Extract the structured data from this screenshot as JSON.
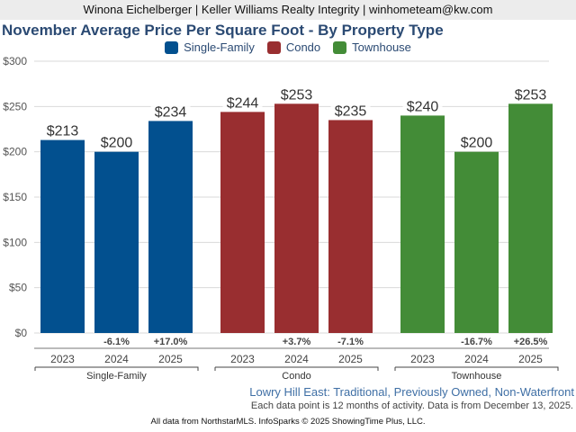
{
  "header": {
    "text": "Winona Eichelberger | Keller Williams Realty Integrity | winhometeam@kw.com"
  },
  "subtitle": "Lowry Hill East: Traditional, Previously Owned, Non-Waterfront",
  "note": "Each data point is 12 months of activity. Data is from December 13, 2025.",
  "footer": "All data from NorthstarMLS. InfoSparks © 2025 ShowingTime Plus, LLC.",
  "chart_data": {
    "type": "bar",
    "title": "November Average Price Per Square Foot - By Property Type",
    "xlabel": "",
    "ylabel": "",
    "ylim": [
      0,
      300
    ],
    "yticks": [
      0,
      50,
      100,
      150,
      200,
      250,
      300
    ],
    "ytick_labels": [
      "$0",
      "$50",
      "$100",
      "$150",
      "$200",
      "$250",
      "$300"
    ],
    "grid": true,
    "legend_position": "top-center",
    "categories": [
      "2023",
      "2024",
      "2025"
    ],
    "series": [
      {
        "name": "Single-Family",
        "color": "#02508f",
        "values": [
          213,
          200,
          234
        ],
        "labels": [
          "$213",
          "$200",
          "$234"
        ],
        "changes": [
          "",
          "-6.1%",
          "+17.0%"
        ]
      },
      {
        "name": "Condo",
        "color": "#992e30",
        "values": [
          244,
          253,
          235
        ],
        "labels": [
          "$244",
          "$253",
          "$235"
        ],
        "changes": [
          "",
          "+3.7%",
          "-7.1%"
        ]
      },
      {
        "name": "Townhouse",
        "color": "#438c37",
        "values": [
          240,
          200,
          253
        ],
        "labels": [
          "$240",
          "$200",
          "$253"
        ],
        "changes": [
          "",
          "-16.7%",
          "+26.5%"
        ]
      }
    ]
  }
}
